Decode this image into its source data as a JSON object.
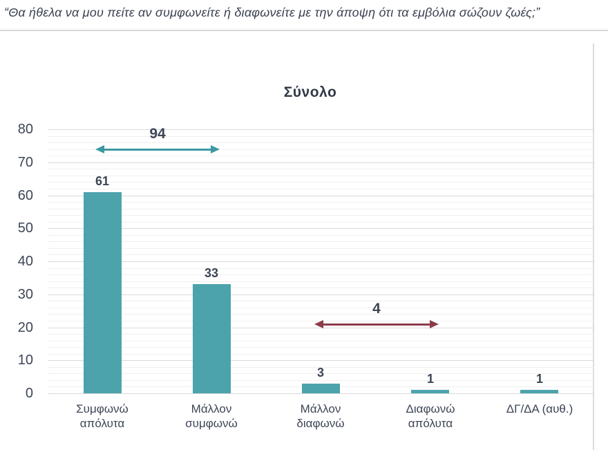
{
  "header": {
    "quote": "“Θα ήθελα να μου πείτε αν συμφωνείτε ή διαφωνείτε με την άποψη ότι τα εμβόλια σώζουν ζωές;”"
  },
  "chart_data": {
    "type": "bar",
    "title": "Σύνολο",
    "categories": [
      "Συμφωνώ απόλυτα",
      "Μάλλον συμφωνώ",
      "Μάλλον διαφωνώ",
      "Διαφωνώ απόλυτα",
      "ΔΓ/ΔΑ (αυθ.)"
    ],
    "category_label_lines": [
      [
        "Συμφωνώ",
        "απόλυτα"
      ],
      [
        "Μάλλον",
        "συμφωνώ"
      ],
      [
        "Μάλλον",
        "διαφωνώ"
      ],
      [
        "Διαφωνώ",
        "απόλυτα"
      ],
      [
        "ΔΓ/ΔΑ (αυθ.)"
      ]
    ],
    "values": [
      61,
      33,
      3,
      1,
      1
    ],
    "value_labels": [
      "61",
      "33",
      "3",
      "1",
      "1"
    ],
    "xlabel": "",
    "ylabel": "",
    "ylim": [
      0,
      80
    ],
    "yticks": [
      0,
      10,
      20,
      30,
      40,
      50,
      60,
      70,
      80
    ],
    "minor_grid_step": 2,
    "grid": true,
    "legend": false,
    "bar_color": "#4ca3ac",
    "annotations": [
      {
        "label": "94",
        "from_index": 0,
        "to_index": 1,
        "value": 74,
        "color": "#3d98a2"
      },
      {
        "label": "4",
        "from_index": 2,
        "to_index": 3,
        "value": 21,
        "color": "#8c3b49"
      }
    ]
  },
  "colors": {
    "text": "#3d4555",
    "title": "#323947",
    "quote_text": "#3a4150",
    "bar": "#4ca3ac",
    "arrow_agree": "#3d98a2",
    "arrow_disagree": "#8c3b49",
    "grid_major": "#d9d9d9",
    "grid_minor": "#efefef",
    "divider": "#d6d6d6",
    "panel_border": "#dcdcdc",
    "background": "#ffffff"
  }
}
